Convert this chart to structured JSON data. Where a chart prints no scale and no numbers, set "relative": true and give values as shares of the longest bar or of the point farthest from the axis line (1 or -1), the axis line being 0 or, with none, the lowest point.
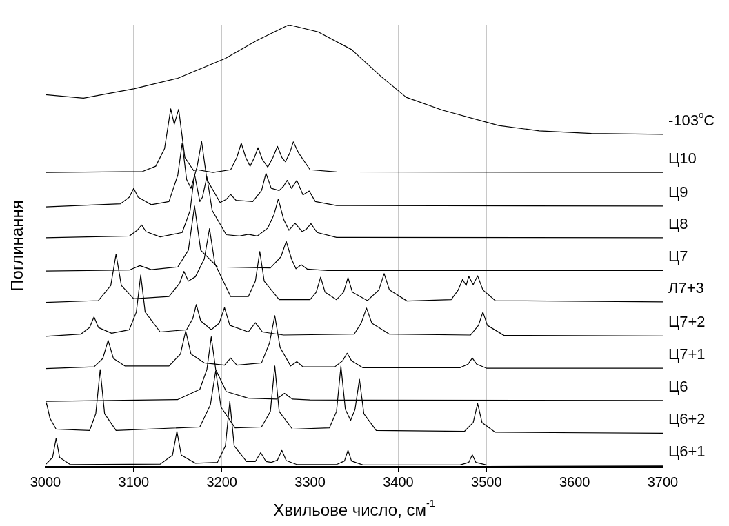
{
  "chart_data": {
    "type": "line",
    "xlabel": "Хвильове число, см$^{-1}$",
    "ylabel": "Поглинання",
    "relative": true,
    "xlim": [
      3000,
      3700
    ],
    "xticks": [
      3000,
      3100,
      3200,
      3300,
      3400,
      3500,
      3600,
      3700
    ],
    "grid": "x",
    "legend": false,
    "marker": "none",
    "line_style": "solid",
    "series": [
      {
        "name": "-103$^{o}$C",
        "color": "#000000",
        "x": [
          3000,
          3043,
          3100,
          3150,
          3204,
          3240,
          3276,
          3309,
          3347,
          3380,
          3409,
          3450,
          3514,
          3560,
          3619,
          3700
        ],
        "values": [
          0.842,
          0.834,
          0.855,
          0.879,
          0.924,
          0.965,
          1,
          0.984,
          0.944,
          0.884,
          0.836,
          0.807,
          0.772,
          0.76,
          0.754,
          0.752
        ]
      },
      {
        "name": "Ц10",
        "color": "#000000",
        "x": [
          3000,
          3110,
          3125,
          3135,
          3142,
          3146,
          3151,
          3158,
          3168,
          3172,
          3190,
          3210,
          3217,
          3222,
          3227,
          3232,
          3237,
          3241,
          3246,
          3252,
          3258,
          3263,
          3268,
          3272,
          3277,
          3281,
          3287,
          3300,
          3330,
          3700
        ],
        "values": [
          0.666,
          0.668,
          0.68,
          0.72,
          0.81,
          0.775,
          0.809,
          0.7,
          0.67,
          0.672,
          0.666,
          0.672,
          0.7,
          0.732,
          0.7,
          0.68,
          0.7,
          0.722,
          0.695,
          0.678,
          0.7,
          0.725,
          0.7,
          0.69,
          0.71,
          0.735,
          0.71,
          0.672,
          0.667,
          0.666
        ]
      },
      {
        "name": "Ц9",
        "color": "#000000",
        "x": [
          3000,
          3085,
          3095,
          3100,
          3105,
          3120,
          3140,
          3150,
          3155,
          3160,
          3165,
          3172,
          3177,
          3183,
          3198,
          3205,
          3210,
          3216,
          3235,
          3245,
          3250,
          3256,
          3265,
          3270,
          3274,
          3279,
          3285,
          3292,
          3299,
          3306,
          3330,
          3700
        ],
        "values": [
          0.588,
          0.595,
          0.61,
          0.63,
          0.61,
          0.593,
          0.6,
          0.66,
          0.732,
          0.65,
          0.63,
          0.68,
          0.736,
          0.65,
          0.598,
          0.605,
          0.616,
          0.603,
          0.6,
          0.625,
          0.664,
          0.63,
          0.625,
          0.635,
          0.648,
          0.63,
          0.648,
          0.615,
          0.624,
          0.6,
          0.591,
          0.59
        ]
      },
      {
        "name": "Ц8",
        "color": "#000000",
        "x": [
          3000,
          3095,
          3104,
          3109,
          3114,
          3130,
          3155,
          3164,
          3169,
          3175,
          3178,
          3183,
          3189,
          3205,
          3220,
          3230,
          3240,
          3252,
          3259,
          3264,
          3270,
          3276,
          3283,
          3291,
          3296,
          3301,
          3308,
          3330,
          3700
        ],
        "values": [
          0.518,
          0.522,
          0.535,
          0.547,
          0.532,
          0.52,
          0.53,
          0.58,
          0.662,
          0.6,
          0.61,
          0.656,
          0.58,
          0.525,
          0.522,
          0.526,
          0.522,
          0.54,
          0.57,
          0.606,
          0.56,
          0.535,
          0.551,
          0.532,
          0.538,
          0.55,
          0.53,
          0.519,
          0.518
        ]
      },
      {
        "name": "Ц7",
        "color": "#000000",
        "x": [
          3000,
          3095,
          3107,
          3120,
          3150,
          3162,
          3169,
          3176,
          3195,
          3255,
          3267,
          3273,
          3279,
          3284,
          3290,
          3297,
          3320,
          3700
        ],
        "values": [
          0.443,
          0.445,
          0.455,
          0.446,
          0.452,
          0.49,
          0.59,
          0.49,
          0.452,
          0.45,
          0.475,
          0.51,
          0.47,
          0.448,
          0.457,
          0.447,
          0.444,
          0.444
        ]
      },
      {
        "name": "Л7+3",
        "color": "#000000",
        "x": [
          3000,
          3060,
          3074,
          3080,
          3086,
          3100,
          3140,
          3152,
          3157,
          3162,
          3170,
          3180,
          3186,
          3192,
          3210,
          3230,
          3238,
          3243,
          3248,
          3265,
          3300,
          3307,
          3312,
          3317,
          3330,
          3338,
          3343,
          3348,
          3365,
          3378,
          3384,
          3390,
          3410,
          3460,
          3468,
          3473,
          3477,
          3480,
          3485,
          3490,
          3496,
          3510,
          3700
        ],
        "values": [
          0.372,
          0.376,
          0.41,
          0.481,
          0.41,
          0.38,
          0.385,
          0.415,
          0.442,
          0.42,
          0.43,
          0.47,
          0.539,
          0.46,
          0.385,
          0.385,
          0.42,
          0.487,
          0.42,
          0.378,
          0.378,
          0.395,
          0.429,
          0.395,
          0.378,
          0.395,
          0.428,
          0.395,
          0.376,
          0.4,
          0.437,
          0.4,
          0.375,
          0.378,
          0.4,
          0.424,
          0.41,
          0.431,
          0.412,
          0.432,
          0.4,
          0.376,
          0.373
        ]
      },
      {
        "name": "Ц7+2",
        "color": "#000000",
        "x": [
          3000,
          3040,
          3050,
          3055,
          3060,
          3075,
          3095,
          3103,
          3108,
          3113,
          3130,
          3160,
          3167,
          3171,
          3176,
          3188,
          3197,
          3203,
          3209,
          3230,
          3238,
          3246,
          3270,
          3350,
          3358,
          3364,
          3370,
          3390,
          3482,
          3491,
          3496,
          3501,
          3520,
          3700
        ],
        "values": [
          0.295,
          0.3,
          0.315,
          0.339,
          0.315,
          0.302,
          0.31,
          0.35,
          0.434,
          0.35,
          0.305,
          0.31,
          0.335,
          0.367,
          0.33,
          0.31,
          0.325,
          0.36,
          0.32,
          0.305,
          0.326,
          0.305,
          0.298,
          0.3,
          0.325,
          0.359,
          0.325,
          0.3,
          0.298,
          0.32,
          0.35,
          0.32,
          0.297,
          0.296
        ]
      },
      {
        "name": "Ц7+1",
        "color": "#000000",
        "x": [
          3000,
          3055,
          3065,
          3071,
          3077,
          3090,
          3140,
          3153,
          3159,
          3165,
          3180,
          3203,
          3210,
          3217,
          3245,
          3254,
          3260,
          3266,
          3278,
          3285,
          3292,
          3328,
          3337,
          3342,
          3347,
          3360,
          3470,
          3479,
          3484,
          3489,
          3500,
          3700
        ],
        "values": [
          0.222,
          0.226,
          0.245,
          0.286,
          0.245,
          0.228,
          0.228,
          0.255,
          0.307,
          0.255,
          0.235,
          0.23,
          0.246,
          0.23,
          0.235,
          0.28,
          0.342,
          0.27,
          0.228,
          0.238,
          0.226,
          0.226,
          0.24,
          0.257,
          0.24,
          0.224,
          0.224,
          0.232,
          0.246,
          0.232,
          0.223,
          0.223
        ]
      },
      {
        "name": "Ц6",
        "color": "#000000",
        "x": [
          3000,
          3150,
          3175,
          3183,
          3188,
          3193,
          3205,
          3230,
          3262,
          3271,
          3280,
          3300,
          3700
        ],
        "values": [
          0.148,
          0.152,
          0.175,
          0.22,
          0.294,
          0.22,
          0.17,
          0.155,
          0.153,
          0.166,
          0.153,
          0.151,
          0.15
        ]
      },
      {
        "name": "Ц6+2",
        "color": "#000000",
        "x": [
          3000,
          3001,
          3005,
          3012,
          3050,
          3057,
          3062,
          3067,
          3080,
          3175,
          3187,
          3193,
          3199,
          3215,
          3245,
          3255,
          3260,
          3265,
          3280,
          3322,
          3330,
          3335,
          3340,
          3346,
          3351,
          3356,
          3361,
          3375,
          3475,
          3485,
          3490,
          3495,
          3510,
          3700
        ],
        "values": [
          0.14,
          0.145,
          0.11,
          0.085,
          0.082,
          0.12,
          0.22,
          0.12,
          0.082,
          0.09,
          0.14,
          0.217,
          0.135,
          0.088,
          0.09,
          0.125,
          0.228,
          0.125,
          0.085,
          0.088,
          0.125,
          0.228,
          0.13,
          0.105,
          0.13,
          0.198,
          0.12,
          0.082,
          0.08,
          0.1,
          0.143,
          0.1,
          0.078,
          0.076
        ]
      },
      {
        "name": "Ц6+1",
        "color": "#000000",
        "x": [
          3000,
          3008,
          3012,
          3016,
          3028,
          3130,
          3144,
          3149,
          3154,
          3170,
          3195,
          3204,
          3209,
          3214,
          3228,
          3238,
          3244,
          3250,
          3256,
          3263,
          3268,
          3273,
          3285,
          3330,
          3339,
          3343,
          3347,
          3360,
          3470,
          3480,
          3484,
          3488,
          3500,
          3700
        ],
        "values": [
          0.005,
          0.021,
          0.064,
          0.021,
          0.005,
          0.006,
          0.026,
          0.08,
          0.026,
          0.008,
          0.01,
          0.047,
          0.148,
          0.047,
          0.012,
          0.012,
          0.032,
          0.012,
          0.01,
          0.015,
          0.037,
          0.014,
          0.005,
          0.005,
          0.013,
          0.037,
          0.013,
          0.004,
          0.004,
          0.01,
          0.027,
          0.01,
          0.004,
          0.003
        ]
      }
    ]
  }
}
